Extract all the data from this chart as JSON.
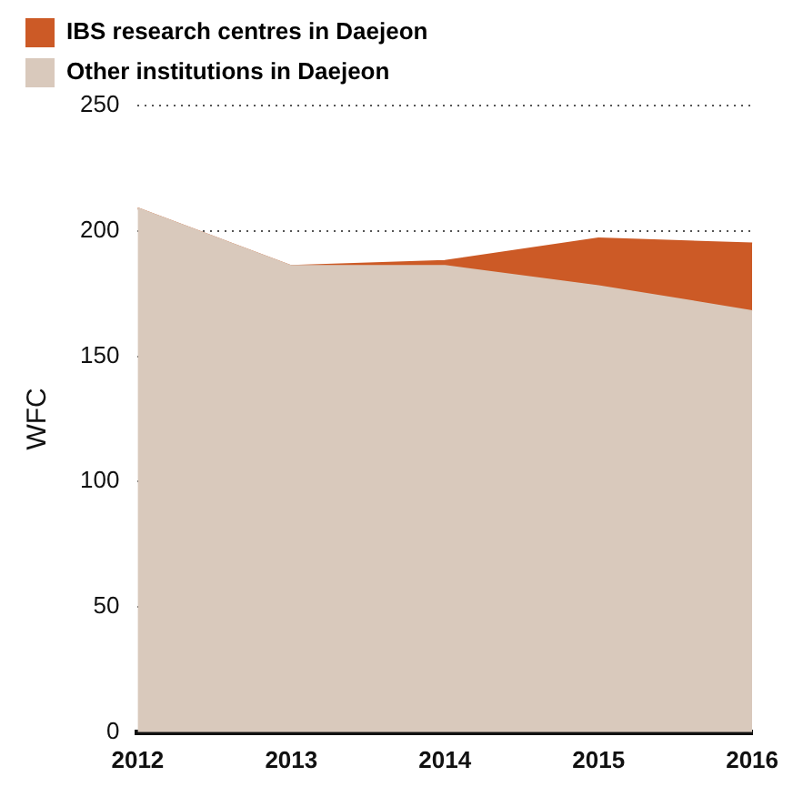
{
  "chart_data": {
    "type": "area",
    "stacked": true,
    "ylabel": "WFC",
    "categories": [
      "2012",
      "2013",
      "2014",
      "2015",
      "2016"
    ],
    "series": [
      {
        "name": "Other institutions in Daejeon",
        "color": "#d9c9bc",
        "values": [
          209,
          186,
          186,
          178,
          168
        ]
      },
      {
        "name": "IBS research centres in Daejeon",
        "color": "#cc5a26",
        "values": [
          0,
          0,
          2,
          19,
          27
        ]
      }
    ],
    "ylim": [
      0,
      250
    ],
    "yticks": [
      0,
      50,
      100,
      150,
      200,
      250
    ],
    "grid": "y",
    "legend": "top left",
    "marker": "none"
  }
}
